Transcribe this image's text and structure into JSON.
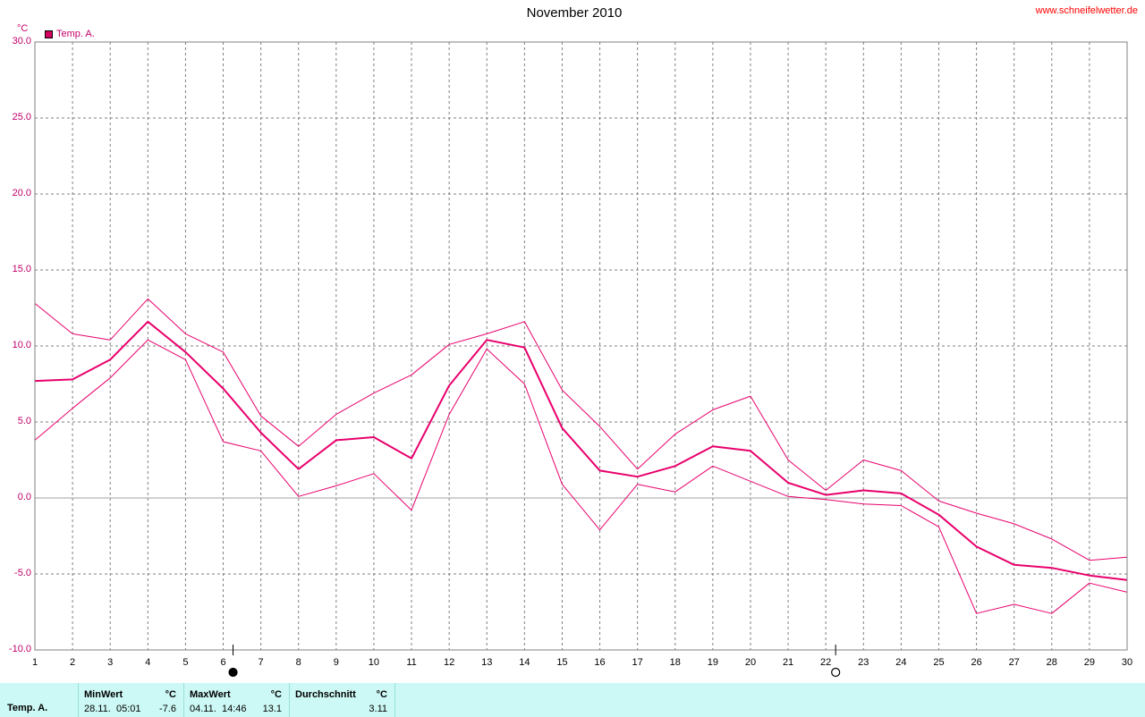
{
  "chart_title": "November 2010",
  "website": "www.schneifelwetter.de",
  "y_unit": "°C",
  "colors": {
    "series": "#e8006c",
    "grid": "#808080",
    "zero_line": "#a0a0a0",
    "stats_bg": "#ccf9f5",
    "website": "#ff0000"
  },
  "moon_phase_icons": [
    {
      "day": 6,
      "icon": "full-moon-icon"
    },
    {
      "day": 22,
      "icon": "new-moon-icon"
    }
  ],
  "chart_data": {
    "type": "line",
    "title": "November 2010",
    "xlabel": "",
    "ylabel": "°C",
    "xlim": [
      1,
      30
    ],
    "ylim": [
      -10,
      30
    ],
    "grid": true,
    "legend_position": "top-left",
    "x": [
      1,
      2,
      3,
      4,
      5,
      6,
      7,
      8,
      9,
      10,
      11,
      12,
      13,
      14,
      15,
      16,
      17,
      18,
      19,
      20,
      21,
      22,
      23,
      24,
      25,
      26,
      27,
      28,
      29,
      30
    ],
    "x_tick_labels": [
      "1",
      "2",
      "3",
      "4",
      "5",
      "6",
      "7",
      "8",
      "9",
      "10",
      "11",
      "12",
      "13",
      "14",
      "15",
      "16",
      "17",
      "18",
      "19",
      "20",
      "21",
      "22",
      "23",
      "24",
      "25",
      "26",
      "27",
      "28",
      "29",
      "30"
    ],
    "y_tick_labels": [
      "30.0",
      "25.0",
      "20.0",
      "15.0",
      "10.0",
      "5.0",
      "0.0",
      "-5.0",
      "-10.0"
    ],
    "series": [
      {
        "name": "Temp. A.",
        "role": "mean",
        "values": [
          7.7,
          7.8,
          9.1,
          11.6,
          9.6,
          7.2,
          4.3,
          1.9,
          3.8,
          4.0,
          2.6,
          7.4,
          10.4,
          9.9,
          4.6,
          1.8,
          1.4,
          2.1,
          3.4,
          3.1,
          1.0,
          0.2,
          0.5,
          0.3,
          -1.1,
          -3.2,
          -4.4,
          -4.6,
          -5.1,
          -5.4
        ]
      },
      {
        "role": "max",
        "values": [
          12.8,
          10.8,
          10.4,
          13.1,
          10.8,
          9.6,
          5.4,
          3.4,
          5.5,
          6.9,
          8.1,
          10.1,
          10.8,
          11.6,
          7.1,
          4.7,
          1.9,
          4.2,
          5.8,
          6.7,
          2.5,
          0.5,
          2.5,
          1.8,
          -0.2,
          -1.0,
          -1.7,
          -2.7,
          -4.1,
          -3.9
        ]
      },
      {
        "role": "min",
        "values": [
          3.8,
          5.9,
          7.9,
          10.4,
          9.1,
          3.7,
          3.1,
          0.1,
          0.8,
          1.6,
          -0.8,
          5.5,
          9.8,
          7.5,
          0.9,
          -2.1,
          0.9,
          0.4,
          2.1,
          1.1,
          0.1,
          -0.1,
          -0.4,
          -0.5,
          -1.9,
          -7.6,
          -7.0,
          -7.6,
          -5.6,
          -6.2
        ]
      }
    ]
  },
  "stats": {
    "sensor": "Temp. A.",
    "min": {
      "header": "MinWert",
      "unit": "°C",
      "date": "28.11.",
      "time": "05:01",
      "value": "-7.6"
    },
    "max": {
      "header": "MaxWert",
      "unit": "°C",
      "date": "04.11.",
      "time": "14:46",
      "value": "13.1"
    },
    "avg": {
      "header": "Durchschnitt",
      "unit": "°C",
      "value": "3.11"
    }
  }
}
